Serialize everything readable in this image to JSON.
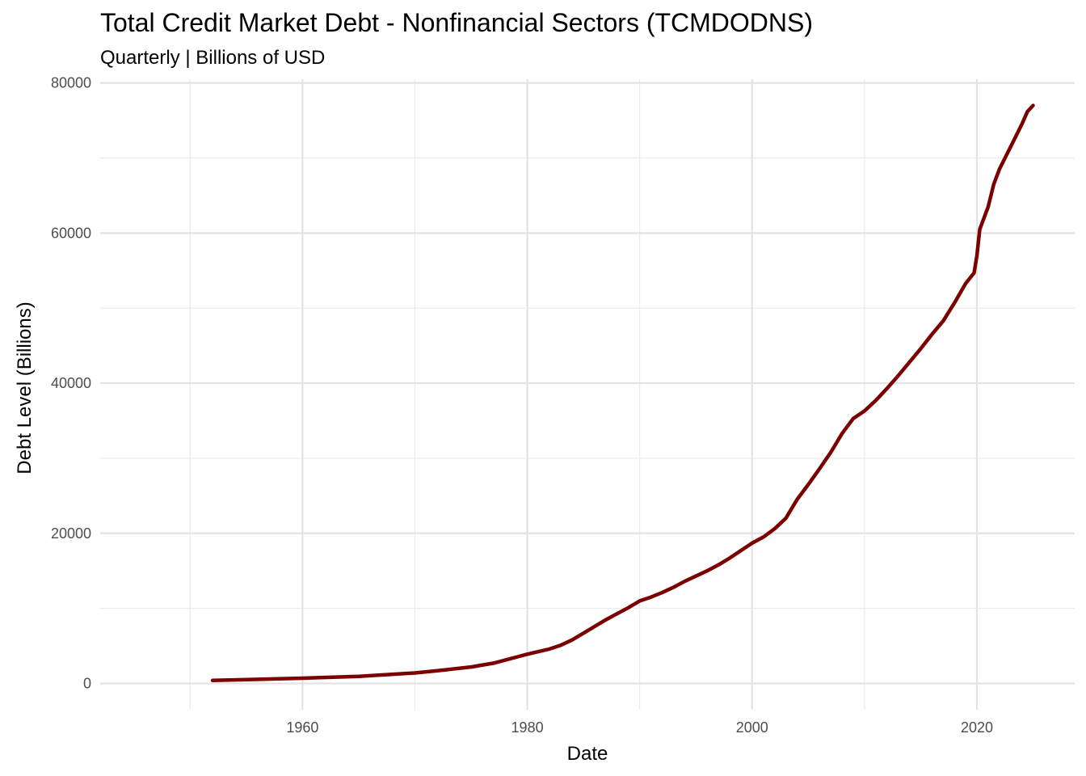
{
  "chart_data": {
    "type": "line",
    "title": "Total Credit Market Debt - Nonfinancial Sectors (TCMDODNS)",
    "subtitle": "Quarterly | Billions of USD",
    "xlabel": "Date",
    "ylabel": "Debt Level (Billions)",
    "xlim": [
      1942,
      2028.7
    ],
    "ylim": [
      -3500,
      80500
    ],
    "x_ticks": [
      1960,
      1980,
      2000,
      2020
    ],
    "x_tick_labels": [
      "1960",
      "1980",
      "2000",
      "2020"
    ],
    "y_ticks": [
      0,
      20000,
      40000,
      60000,
      80000
    ],
    "y_tick_labels": [
      "0",
      "20000",
      "40000",
      "60000",
      "80000"
    ],
    "grid": true,
    "line_color": "#7b0000",
    "series": [
      {
        "x": [
          1952.0,
          1955.0,
          1960.0,
          1965.0,
          1970.0,
          1972.0,
          1975.0,
          1977.0,
          1979.0,
          1980.0,
          1982.0,
          1983.0,
          1984.0,
          1985.0,
          1986.0,
          1987.0,
          1988.0,
          1989.0,
          1990.0,
          1991.0,
          1992.0,
          1993.0,
          1994.0,
          1995.0,
          1996.0,
          1997.0,
          1998.0,
          1999.0,
          2000.0,
          2001.0,
          2002.0,
          2003.0,
          2004.0,
          2005.0,
          2006.0,
          2007.0,
          2008.0,
          2009.0,
          2010.0,
          2011.0,
          2012.0,
          2013.0,
          2014.0,
          2015.0,
          2016.0,
          2017.0,
          2018.0,
          2019.0,
          2019.75,
          2020.0,
          2020.25,
          2021.0,
          2021.5,
          2022.0,
          2023.0,
          2024.0,
          2024.5,
          2025.0
        ],
        "y": [
          400,
          520,
          700,
          950,
          1400,
          1700,
          2200,
          2700,
          3500,
          3900,
          4600,
          5100,
          5800,
          6700,
          7600,
          8500,
          9300,
          10100,
          11000,
          11500,
          12100,
          12800,
          13600,
          14300,
          15000,
          15800,
          16700,
          17700,
          18700,
          19500,
          20600,
          22000,
          24500,
          26500,
          28600,
          30800,
          33300,
          35300,
          36300,
          37700,
          39300,
          41000,
          42800,
          44600,
          46500,
          48300,
          50700,
          53300,
          54700,
          57000,
          60500,
          63500,
          66500,
          68500,
          71500,
          74500,
          76200,
          77000
        ]
      }
    ]
  }
}
